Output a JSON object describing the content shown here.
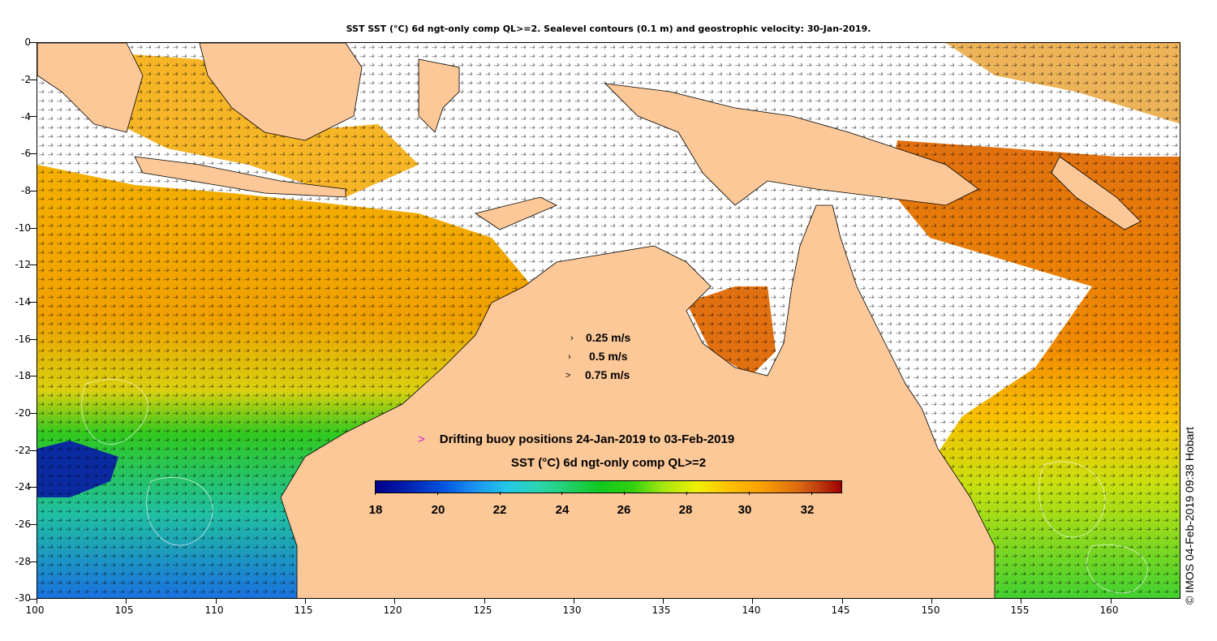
{
  "title": "SST SST (°C) 6d ngt-only comp QL>=2. Sealevel contours (0.1 m) and geostrophic velocity: 30-Jan-2019.",
  "axes": {
    "x_ticks": [
      "100",
      "105",
      "110",
      "115",
      "120",
      "125",
      "130",
      "135",
      "140",
      "145",
      "150",
      "155",
      "160"
    ],
    "y_ticks": [
      "0",
      "-2",
      "-4",
      "-6",
      "-8",
      "-10",
      "-12",
      "-14",
      "-16",
      "-18",
      "-20",
      "-22",
      "-24",
      "-26",
      "-28",
      "-30"
    ],
    "lon_range": [
      100,
      164
    ],
    "lat_range": [
      -30,
      0
    ]
  },
  "velocity_legend": [
    {
      "glyph": "›",
      "label": "0.25 m/s"
    },
    {
      "glyph": "›",
      "label": "0.5 m/s"
    },
    {
      "glyph": ">",
      "label": "0.75 m/s"
    }
  ],
  "buoy_legend": {
    "marker": ">",
    "label": "Drifting buoy positions 24-Jan-2019 to 03-Feb-2019",
    "marker_color": "#d020d0"
  },
  "colorbar": {
    "title": "SST (°C) 6d ngt-only comp QL>=2",
    "min": 18,
    "max": 33,
    "tick_labels": [
      "18",
      "20",
      "22",
      "24",
      "26",
      "28",
      "30",
      "32"
    ]
  },
  "credit": "© IMOS 04-Feb-2019 09:38 Hobart",
  "colors": {
    "land": "#fcc898",
    "no_data": "#ffffff",
    "cold": "#1e5ee0",
    "warm": "#e07010"
  }
}
